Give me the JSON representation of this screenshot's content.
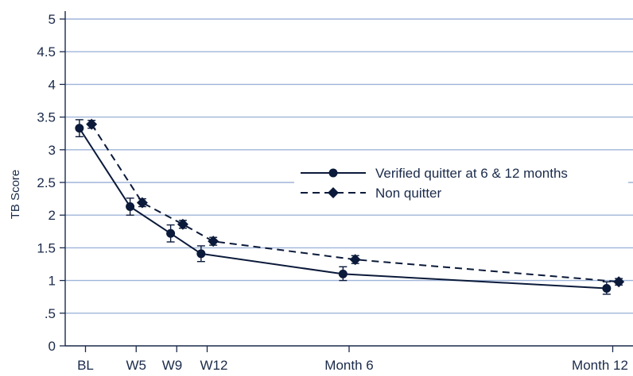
{
  "chart_data": {
    "type": "line",
    "title": "",
    "xlabel": "",
    "ylabel": "TB Score",
    "ylim": [
      0,
      5
    ],
    "yticks": [
      {
        "value": 0,
        "label": "0"
      },
      {
        "value": 0.5,
        "label": ".5"
      },
      {
        "value": 1,
        "label": "1"
      },
      {
        "value": 1.5,
        "label": "1.5"
      },
      {
        "value": 2,
        "label": "2"
      },
      {
        "value": 2.5,
        "label": "2.5"
      },
      {
        "value": 3,
        "label": "3"
      },
      {
        "value": 3.5,
        "label": "3.5"
      },
      {
        "value": 4,
        "label": "4"
      },
      {
        "value": 4.5,
        "label": "4.5"
      },
      {
        "value": 5,
        "label": "5"
      }
    ],
    "xlim": [
      -2,
      54
    ],
    "xticks": [
      {
        "value": 0,
        "label": "BL"
      },
      {
        "value": 5,
        "label": "W5"
      },
      {
        "value": 9,
        "label": "W9"
      },
      {
        "value": 12,
        "label": "W12"
      },
      {
        "value": 26,
        "label": "Month 6"
      },
      {
        "value": 52,
        "label": "Month 12"
      }
    ],
    "grid": true,
    "legend_position": "right",
    "series": [
      {
        "name": "Verified quitter at 6 & 12 months",
        "style": "solid",
        "marker": "circle",
        "color": "#0b1a3a",
        "points": [
          {
            "x": -0.6,
            "y": 3.33,
            "lo": 3.2,
            "hi": 3.46
          },
          {
            "x": 4.4,
            "y": 2.13,
            "lo": 2.0,
            "hi": 2.26
          },
          {
            "x": 8.4,
            "y": 1.72,
            "lo": 1.59,
            "hi": 1.85
          },
          {
            "x": 11.4,
            "y": 1.41,
            "lo": 1.29,
            "hi": 1.53
          },
          {
            "x": 25.4,
            "y": 1.1,
            "lo": 1.0,
            "hi": 1.21
          },
          {
            "x": 51.4,
            "y": 0.88,
            "lo": 0.79,
            "hi": 0.98
          }
        ]
      },
      {
        "name": "Non quitter",
        "style": "dashed",
        "marker": "diamond",
        "color": "#0b1a3a",
        "points": [
          {
            "x": 0.6,
            "y": 3.39,
            "lo": 3.33,
            "hi": 3.45
          },
          {
            "x": 5.6,
            "y": 2.19,
            "lo": 2.13,
            "hi": 2.25
          },
          {
            "x": 9.6,
            "y": 1.86,
            "lo": 1.8,
            "hi": 1.92
          },
          {
            "x": 12.6,
            "y": 1.6,
            "lo": 1.54,
            "hi": 1.66
          },
          {
            "x": 26.6,
            "y": 1.32,
            "lo": 1.26,
            "hi": 1.38
          },
          {
            "x": 52.6,
            "y": 0.98,
            "lo": 0.93,
            "hi": 1.03
          }
        ]
      }
    ]
  },
  "colors": {
    "grid": "#9fb4d8",
    "axis": "#1a2a4a",
    "line": "#0b1a3a"
  }
}
